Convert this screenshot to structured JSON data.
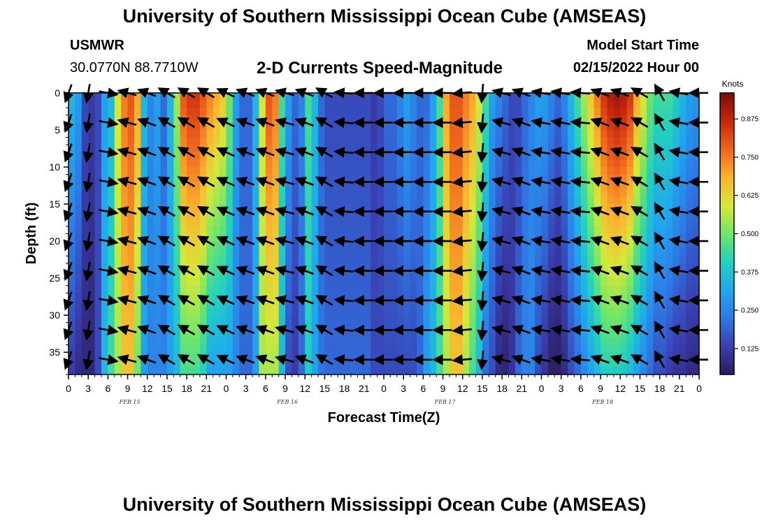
{
  "header": {
    "title": "University of Southern Mississippi Ocean Cube (AMSEAS)",
    "station": "USMWR",
    "coordinates": "30.0770N  88.7710W",
    "subtitle": "2-D Currents Speed-Magnitude",
    "model_start_label": "Model Start Time",
    "model_start_value": "02/15/2022 Hour 00"
  },
  "footer": {
    "title": "University of Southern Mississippi Ocean Cube (AMSEAS)"
  },
  "colors": {
    "ramp": [
      "#2b1b5e",
      "#3a3fb0",
      "#2f78e6",
      "#20a8ee",
      "#22d0c0",
      "#6ee66a",
      "#d6e83a",
      "#fbb32e",
      "#f0641e",
      "#c8260a",
      "#7a0a0a"
    ],
    "arrow": "#000000"
  },
  "chart_data": {
    "type": "heatmap",
    "title": "2-D Currents Speed-Magnitude",
    "xlabel": "Forecast Time(Z)",
    "ylabel": "Depth (ft)",
    "x_ticks": [
      "0",
      "3",
      "6",
      "9",
      "12",
      "15",
      "18",
      "21",
      "0",
      "3",
      "6",
      "9",
      "12",
      "15",
      "18",
      "21",
      "0",
      "3",
      "6",
      "9",
      "12",
      "15",
      "18",
      "21",
      "0",
      "3",
      "6",
      "9",
      "12",
      "15",
      "18",
      "21",
      "0"
    ],
    "x_range_hours": [
      0,
      96
    ],
    "date_labels": [
      {
        "label": "FEB 15",
        "hour": 9
      },
      {
        "label": "FEB 16",
        "hour": 33
      },
      {
        "label": "FEB 17",
        "hour": 57
      },
      {
        "label": "FEB 18",
        "hour": 81
      }
    ],
    "y_ticks": [
      0,
      5,
      10,
      15,
      20,
      25,
      30,
      35
    ],
    "y_range": [
      0,
      38
    ],
    "y_inverted": true,
    "colorbar": {
      "unit": "Knots",
      "range": [
        0.04,
        0.96
      ],
      "ticks": [
        "0.875",
        "0.750",
        "0.625",
        "0.500",
        "0.375",
        "0.250",
        "0.125"
      ],
      "tick_values": [
        0.875,
        0.75,
        0.625,
        0.5,
        0.375,
        0.25,
        0.125
      ]
    },
    "speed_profile": {
      "hours": [
        0,
        1,
        2,
        3,
        4,
        5,
        6,
        7,
        8,
        9,
        10,
        11,
        12,
        13,
        14,
        15,
        16,
        17,
        18,
        19,
        20,
        21,
        22,
        23,
        24,
        25,
        26,
        27,
        28,
        29,
        30,
        31,
        32,
        33,
        34,
        35,
        36,
        37,
        38,
        39,
        40,
        41,
        42,
        43,
        44,
        45,
        46,
        47,
        48,
        49,
        50,
        51,
        52,
        53,
        54,
        55,
        56,
        57,
        58,
        59,
        60,
        61,
        62,
        63,
        64,
        65,
        66,
        67,
        68,
        69,
        70,
        71,
        72,
        73,
        74,
        75,
        76,
        77,
        78,
        79,
        80,
        81,
        82,
        83,
        84,
        85,
        86,
        87,
        88,
        89,
        90,
        91,
        92,
        93,
        94,
        95,
        96
      ],
      "surface_knots": [
        0.35,
        0.3,
        0.15,
        0.12,
        0.15,
        0.3,
        0.35,
        0.6,
        0.75,
        0.8,
        0.7,
        0.35,
        0.25,
        0.3,
        0.2,
        0.35,
        0.55,
        0.8,
        0.85,
        0.85,
        0.8,
        0.75,
        0.7,
        0.65,
        0.5,
        0.3,
        0.2,
        0.2,
        0.35,
        0.6,
        0.8,
        0.75,
        0.45,
        0.3,
        0.2,
        0.25,
        0.45,
        0.35,
        0.2,
        0.15,
        0.15,
        0.15,
        0.15,
        0.15,
        0.15,
        0.15,
        0.12,
        0.15,
        0.2,
        0.2,
        0.25,
        0.3,
        0.25,
        0.2,
        0.2,
        0.3,
        0.45,
        0.7,
        0.8,
        0.8,
        0.75,
        0.7,
        0.6,
        0.45,
        0.3,
        0.25,
        0.2,
        0.15,
        0.15,
        0.2,
        0.25,
        0.3,
        0.3,
        0.25,
        0.2,
        0.25,
        0.35,
        0.45,
        0.55,
        0.65,
        0.75,
        0.85,
        0.9,
        0.92,
        0.9,
        0.85,
        0.7,
        0.6,
        0.5,
        0.45,
        0.45,
        0.45,
        0.4,
        0.35,
        0.3,
        0.28,
        0.3
      ],
      "bottom_knots": [
        0.12,
        0.08,
        0.07,
        0.07,
        0.15,
        0.35,
        0.45,
        0.55,
        0.65,
        0.65,
        0.5,
        0.3,
        0.25,
        0.25,
        0.25,
        0.3,
        0.35,
        0.45,
        0.45,
        0.45,
        0.4,
        0.3,
        0.3,
        0.3,
        0.3,
        0.25,
        0.2,
        0.2,
        0.3,
        0.55,
        0.55,
        0.55,
        0.35,
        0.15,
        0.12,
        0.2,
        0.4,
        0.3,
        0.22,
        0.2,
        0.2,
        0.2,
        0.2,
        0.2,
        0.2,
        0.2,
        0.15,
        0.15,
        0.15,
        0.15,
        0.15,
        0.15,
        0.15,
        0.2,
        0.3,
        0.35,
        0.45,
        0.55,
        0.65,
        0.65,
        0.55,
        0.45,
        0.35,
        0.2,
        0.15,
        0.08,
        0.06,
        0.1,
        0.2,
        0.25,
        0.25,
        0.15,
        0.1,
        0.05,
        0.05,
        0.08,
        0.15,
        0.2,
        0.25,
        0.3,
        0.35,
        0.4,
        0.4,
        0.4,
        0.38,
        0.35,
        0.3,
        0.25,
        0.2,
        0.15,
        0.15,
        0.12,
        0.1,
        0.1,
        0.08,
        0.08,
        0.08
      ]
    },
    "vector_field": {
      "hours": [
        0,
        3,
        6,
        9,
        12,
        15,
        18,
        21,
        24,
        27,
        30,
        33,
        36,
        39,
        42,
        45,
        48,
        51,
        54,
        57,
        60,
        63,
        66,
        69,
        72,
        75,
        78,
        81,
        84,
        87,
        90,
        93,
        96
      ],
      "depths_ft": [
        0,
        4,
        8,
        12,
        16,
        20,
        24,
        28,
        32,
        36
      ],
      "direction_deg_by_hour": [
        200,
        190,
        100,
        285,
        290,
        300,
        300,
        300,
        295,
        290,
        290,
        285,
        290,
        300,
        275,
        270,
        270,
        270,
        270,
        270,
        265,
        185,
        285,
        290,
        280,
        280,
        275,
        290,
        290,
        300,
        330,
        280,
        270
      ]
    }
  }
}
